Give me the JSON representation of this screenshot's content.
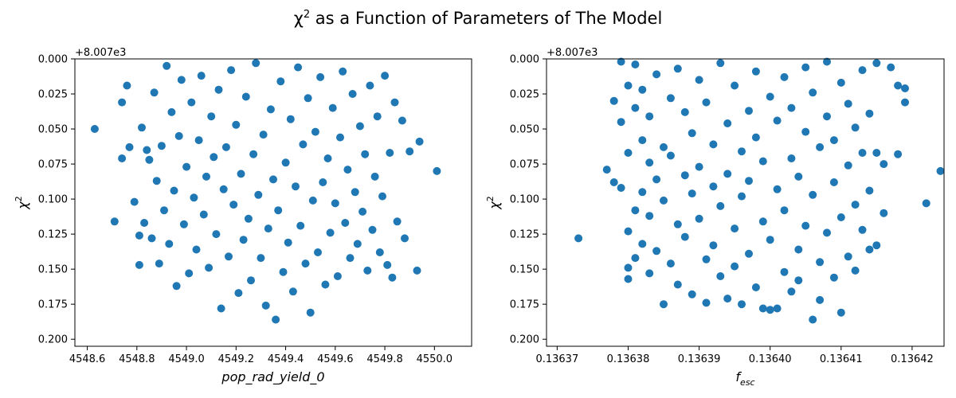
{
  "figure": {
    "title_prefix": "χ",
    "title_sup": "2",
    "title_rest": " as a Function of Parameters of The Model"
  },
  "colors": {
    "marker": "#1f77b4",
    "axes": "#000000",
    "background": "#ffffff"
  },
  "chart_data": [
    {
      "type": "scatter",
      "title": "",
      "xlabel": "pop_rad_yield_0",
      "ylabel_base": "χ",
      "ylabel_sup": "2",
      "y_offset_label": "+8.007e3",
      "xlim": [
        4548.55,
        4550.15
      ],
      "ylim": [
        0.205,
        0.0
      ],
      "y_inverted": true,
      "grid": false,
      "xticks": [
        {
          "value": 4548.6,
          "label": "4548.6"
        },
        {
          "value": 4548.8,
          "label": "4548.8"
        },
        {
          "value": 4549.0,
          "label": "4549.0"
        },
        {
          "value": 4549.2,
          "label": "4549.2"
        },
        {
          "value": 4549.4,
          "label": "4549.4"
        },
        {
          "value": 4549.6,
          "label": "4549.6"
        },
        {
          "value": 4549.8,
          "label": "4549.8"
        },
        {
          "value": 4550.0,
          "label": "4550.0"
        }
      ],
      "yticks": [
        {
          "value": 0.0,
          "label": "0.000"
        },
        {
          "value": 0.025,
          "label": "0.025"
        },
        {
          "value": 0.05,
          "label": "0.050"
        },
        {
          "value": 0.075,
          "label": "0.075"
        },
        {
          "value": 0.1,
          "label": "0.100"
        },
        {
          "value": 0.125,
          "label": "0.125"
        },
        {
          "value": 0.15,
          "label": "0.150"
        },
        {
          "value": 0.175,
          "label": "0.175"
        },
        {
          "value": 0.2,
          "label": "0.200"
        }
      ],
      "points": [
        {
          "x": 4548.63,
          "y": 0.05
        },
        {
          "x": 4548.71,
          "y": 0.116
        },
        {
          "x": 4548.74,
          "y": 0.031
        },
        {
          "x": 4548.74,
          "y": 0.071
        },
        {
          "x": 4548.76,
          "y": 0.019
        },
        {
          "x": 4548.77,
          "y": 0.063
        },
        {
          "x": 4548.79,
          "y": 0.102
        },
        {
          "x": 4548.81,
          "y": 0.126
        },
        {
          "x": 4548.81,
          "y": 0.147
        },
        {
          "x": 4548.82,
          "y": 0.049
        },
        {
          "x": 4548.83,
          "y": 0.117
        },
        {
          "x": 4548.84,
          "y": 0.065
        },
        {
          "x": 4548.85,
          "y": 0.072
        },
        {
          "x": 4548.86,
          "y": 0.128
        },
        {
          "x": 4548.87,
          "y": 0.024
        },
        {
          "x": 4548.88,
          "y": 0.087
        },
        {
          "x": 4548.89,
          "y": 0.146
        },
        {
          "x": 4548.9,
          "y": 0.062
        },
        {
          "x": 4548.91,
          "y": 0.108
        },
        {
          "x": 4548.92,
          "y": 0.005
        },
        {
          "x": 4548.93,
          "y": 0.132
        },
        {
          "x": 4548.94,
          "y": 0.038
        },
        {
          "x": 4548.95,
          "y": 0.094
        },
        {
          "x": 4548.96,
          "y": 0.162
        },
        {
          "x": 4548.97,
          "y": 0.055
        },
        {
          "x": 4548.98,
          "y": 0.015
        },
        {
          "x": 4548.99,
          "y": 0.118
        },
        {
          "x": 4549.0,
          "y": 0.077
        },
        {
          "x": 4549.01,
          "y": 0.153
        },
        {
          "x": 4549.02,
          "y": 0.031
        },
        {
          "x": 4549.03,
          "y": 0.099
        },
        {
          "x": 4549.04,
          "y": 0.136
        },
        {
          "x": 4549.05,
          "y": 0.058
        },
        {
          "x": 4549.06,
          "y": 0.012
        },
        {
          "x": 4549.07,
          "y": 0.111
        },
        {
          "x": 4549.08,
          "y": 0.084
        },
        {
          "x": 4549.09,
          "y": 0.149
        },
        {
          "x": 4549.1,
          "y": 0.041
        },
        {
          "x": 4549.11,
          "y": 0.07
        },
        {
          "x": 4549.12,
          "y": 0.125
        },
        {
          "x": 4549.13,
          "y": 0.022
        },
        {
          "x": 4549.14,
          "y": 0.178
        },
        {
          "x": 4549.15,
          "y": 0.093
        },
        {
          "x": 4549.16,
          "y": 0.063
        },
        {
          "x": 4549.17,
          "y": 0.141
        },
        {
          "x": 4549.18,
          "y": 0.008
        },
        {
          "x": 4549.19,
          "y": 0.104
        },
        {
          "x": 4549.2,
          "y": 0.047
        },
        {
          "x": 4549.21,
          "y": 0.167
        },
        {
          "x": 4549.22,
          "y": 0.082
        },
        {
          "x": 4549.23,
          "y": 0.129
        },
        {
          "x": 4549.24,
          "y": 0.027
        },
        {
          "x": 4549.25,
          "y": 0.114
        },
        {
          "x": 4549.26,
          "y": 0.158
        },
        {
          "x": 4549.27,
          "y": 0.068
        },
        {
          "x": 4549.28,
          "y": 0.003
        },
        {
          "x": 4549.29,
          "y": 0.097
        },
        {
          "x": 4549.3,
          "y": 0.142
        },
        {
          "x": 4549.31,
          "y": 0.054
        },
        {
          "x": 4549.32,
          "y": 0.176
        },
        {
          "x": 4549.33,
          "y": 0.121
        },
        {
          "x": 4549.34,
          "y": 0.036
        },
        {
          "x": 4549.35,
          "y": 0.086
        },
        {
          "x": 4549.36,
          "y": 0.186
        },
        {
          "x": 4549.37,
          "y": 0.108
        },
        {
          "x": 4549.38,
          "y": 0.016
        },
        {
          "x": 4549.39,
          "y": 0.152
        },
        {
          "x": 4549.4,
          "y": 0.074
        },
        {
          "x": 4549.41,
          "y": 0.131
        },
        {
          "x": 4549.42,
          "y": 0.043
        },
        {
          "x": 4549.43,
          "y": 0.166
        },
        {
          "x": 4549.44,
          "y": 0.091
        },
        {
          "x": 4549.45,
          "y": 0.006
        },
        {
          "x": 4549.46,
          "y": 0.119
        },
        {
          "x": 4549.47,
          "y": 0.061
        },
        {
          "x": 4549.48,
          "y": 0.146
        },
        {
          "x": 4549.49,
          "y": 0.028
        },
        {
          "x": 4549.5,
          "y": 0.181
        },
        {
          "x": 4549.51,
          "y": 0.101
        },
        {
          "x": 4549.52,
          "y": 0.052
        },
        {
          "x": 4549.53,
          "y": 0.138
        },
        {
          "x": 4549.54,
          "y": 0.013
        },
        {
          "x": 4549.55,
          "y": 0.088
        },
        {
          "x": 4549.56,
          "y": 0.161
        },
        {
          "x": 4549.57,
          "y": 0.071
        },
        {
          "x": 4549.58,
          "y": 0.124
        },
        {
          "x": 4549.59,
          "y": 0.035
        },
        {
          "x": 4549.6,
          "y": 0.103
        },
        {
          "x": 4549.61,
          "y": 0.155
        },
        {
          "x": 4549.62,
          "y": 0.056
        },
        {
          "x": 4549.63,
          "y": 0.009
        },
        {
          "x": 4549.64,
          "y": 0.117
        },
        {
          "x": 4549.65,
          "y": 0.079
        },
        {
          "x": 4549.66,
          "y": 0.142
        },
        {
          "x": 4549.67,
          "y": 0.025
        },
        {
          "x": 4549.68,
          "y": 0.095
        },
        {
          "x": 4549.69,
          "y": 0.132
        },
        {
          "x": 4549.7,
          "y": 0.048
        },
        {
          "x": 4549.71,
          "y": 0.109
        },
        {
          "x": 4549.72,
          "y": 0.068
        },
        {
          "x": 4549.73,
          "y": 0.151
        },
        {
          "x": 4549.74,
          "y": 0.019
        },
        {
          "x": 4549.75,
          "y": 0.122
        },
        {
          "x": 4549.76,
          "y": 0.084
        },
        {
          "x": 4549.77,
          "y": 0.041
        },
        {
          "x": 4549.78,
          "y": 0.138
        },
        {
          "x": 4549.79,
          "y": 0.098
        },
        {
          "x": 4549.8,
          "y": 0.012
        },
        {
          "x": 4549.81,
          "y": 0.147
        },
        {
          "x": 4549.82,
          "y": 0.067
        },
        {
          "x": 4549.83,
          "y": 0.156
        },
        {
          "x": 4549.84,
          "y": 0.031
        },
        {
          "x": 4549.85,
          "y": 0.116
        },
        {
          "x": 4549.87,
          "y": 0.044
        },
        {
          "x": 4549.88,
          "y": 0.128
        },
        {
          "x": 4549.9,
          "y": 0.066
        },
        {
          "x": 4549.93,
          "y": 0.151
        },
        {
          "x": 4549.94,
          "y": 0.059
        },
        {
          "x": 4550.01,
          "y": 0.08
        }
      ]
    },
    {
      "type": "scatter",
      "title": "",
      "xlabel_base": "f",
      "xlabel_sub": "esc",
      "ylabel_base": "χ",
      "ylabel_sup": "2",
      "y_offset_label": "+8.007e3",
      "xlim": [
        0.1363685,
        0.1364245
      ],
      "ylim": [
        0.205,
        0.0
      ],
      "y_inverted": true,
      "grid": false,
      "xticks": [
        {
          "value": 0.13637,
          "label": "0.13637"
        },
        {
          "value": 0.13638,
          "label": "0.13638"
        },
        {
          "value": 0.13639,
          "label": "0.13639"
        },
        {
          "value": 0.1364,
          "label": "0.13640"
        },
        {
          "value": 0.13641,
          "label": "0.13641"
        },
        {
          "value": 0.13642,
          "label": "0.13642"
        }
      ],
      "yticks": [
        {
          "value": 0.0,
          "label": "0.000"
        },
        {
          "value": 0.025,
          "label": "0.025"
        },
        {
          "value": 0.05,
          "label": "0.050"
        },
        {
          "value": 0.075,
          "label": "0.075"
        },
        {
          "value": 0.1,
          "label": "0.100"
        },
        {
          "value": 0.125,
          "label": "0.125"
        },
        {
          "value": 0.15,
          "label": "0.150"
        },
        {
          "value": 0.175,
          "label": "0.175"
        },
        {
          "value": 0.2,
          "label": "0.200"
        }
      ],
      "points": [
        {
          "x": 0.136373,
          "y": 0.128
        },
        {
          "x": 0.136377,
          "y": 0.079
        },
        {
          "x": 0.136378,
          "y": 0.088
        },
        {
          "x": 0.136378,
          "y": 0.03
        },
        {
          "x": 0.136379,
          "y": 0.092
        },
        {
          "x": 0.136379,
          "y": 0.002
        },
        {
          "x": 0.136379,
          "y": 0.045
        },
        {
          "x": 0.13638,
          "y": 0.019
        },
        {
          "x": 0.13638,
          "y": 0.123
        },
        {
          "x": 0.13638,
          "y": 0.149
        },
        {
          "x": 0.13638,
          "y": 0.067
        },
        {
          "x": 0.13638,
          "y": 0.157
        },
        {
          "x": 0.136381,
          "y": 0.035
        },
        {
          "x": 0.136381,
          "y": 0.108
        },
        {
          "x": 0.136381,
          "y": 0.004
        },
        {
          "x": 0.136381,
          "y": 0.142
        },
        {
          "x": 0.136382,
          "y": 0.058
        },
        {
          "x": 0.136382,
          "y": 0.095
        },
        {
          "x": 0.136382,
          "y": 0.132
        },
        {
          "x": 0.136382,
          "y": 0.022
        },
        {
          "x": 0.136383,
          "y": 0.074
        },
        {
          "x": 0.136383,
          "y": 0.153
        },
        {
          "x": 0.136383,
          "y": 0.112
        },
        {
          "x": 0.136383,
          "y": 0.041
        },
        {
          "x": 0.136384,
          "y": 0.086
        },
        {
          "x": 0.136384,
          "y": 0.011
        },
        {
          "x": 0.136384,
          "y": 0.137
        },
        {
          "x": 0.136385,
          "y": 0.063
        },
        {
          "x": 0.136385,
          "y": 0.175
        },
        {
          "x": 0.136385,
          "y": 0.101
        },
        {
          "x": 0.136386,
          "y": 0.028
        },
        {
          "x": 0.136386,
          "y": 0.146
        },
        {
          "x": 0.136386,
          "y": 0.069
        },
        {
          "x": 0.136387,
          "y": 0.118
        },
        {
          "x": 0.136387,
          "y": 0.007
        },
        {
          "x": 0.136387,
          "y": 0.161
        },
        {
          "x": 0.136388,
          "y": 0.083
        },
        {
          "x": 0.136388,
          "y": 0.038
        },
        {
          "x": 0.136388,
          "y": 0.127
        },
        {
          "x": 0.136389,
          "y": 0.096
        },
        {
          "x": 0.136389,
          "y": 0.053
        },
        {
          "x": 0.136389,
          "y": 0.168
        },
        {
          "x": 0.13639,
          "y": 0.015
        },
        {
          "x": 0.13639,
          "y": 0.114
        },
        {
          "x": 0.13639,
          "y": 0.077
        },
        {
          "x": 0.136391,
          "y": 0.143
        },
        {
          "x": 0.136391,
          "y": 0.031
        },
        {
          "x": 0.136391,
          "y": 0.174
        },
        {
          "x": 0.136392,
          "y": 0.091
        },
        {
          "x": 0.136392,
          "y": 0.061
        },
        {
          "x": 0.136392,
          "y": 0.133
        },
        {
          "x": 0.136393,
          "y": 0.003
        },
        {
          "x": 0.136393,
          "y": 0.105
        },
        {
          "x": 0.136393,
          "y": 0.155
        },
        {
          "x": 0.136394,
          "y": 0.046
        },
        {
          "x": 0.136394,
          "y": 0.171
        },
        {
          "x": 0.136394,
          "y": 0.082
        },
        {
          "x": 0.136395,
          "y": 0.121
        },
        {
          "x": 0.136395,
          "y": 0.019
        },
        {
          "x": 0.136395,
          "y": 0.148
        },
        {
          "x": 0.136396,
          "y": 0.066
        },
        {
          "x": 0.136396,
          "y": 0.175
        },
        {
          "x": 0.136396,
          "y": 0.098
        },
        {
          "x": 0.136397,
          "y": 0.037
        },
        {
          "x": 0.136397,
          "y": 0.139
        },
        {
          "x": 0.136397,
          "y": 0.087
        },
        {
          "x": 0.136398,
          "y": 0.009
        },
        {
          "x": 0.136398,
          "y": 0.163
        },
        {
          "x": 0.136398,
          "y": 0.056
        },
        {
          "x": 0.136399,
          "y": 0.116
        },
        {
          "x": 0.136399,
          "y": 0.178
        },
        {
          "x": 0.136399,
          "y": 0.073
        },
        {
          "x": 0.1364,
          "y": 0.027
        },
        {
          "x": 0.1364,
          "y": 0.179
        },
        {
          "x": 0.1364,
          "y": 0.129
        },
        {
          "x": 0.136401,
          "y": 0.093
        },
        {
          "x": 0.136401,
          "y": 0.044
        },
        {
          "x": 0.136401,
          "y": 0.178
        },
        {
          "x": 0.136402,
          "y": 0.152
        },
        {
          "x": 0.136402,
          "y": 0.013
        },
        {
          "x": 0.136402,
          "y": 0.108
        },
        {
          "x": 0.136403,
          "y": 0.071
        },
        {
          "x": 0.136403,
          "y": 0.166
        },
        {
          "x": 0.136403,
          "y": 0.035
        },
        {
          "x": 0.136404,
          "y": 0.136
        },
        {
          "x": 0.136404,
          "y": 0.084
        },
        {
          "x": 0.136404,
          "y": 0.158
        },
        {
          "x": 0.136405,
          "y": 0.052
        },
        {
          "x": 0.136405,
          "y": 0.119
        },
        {
          "x": 0.136405,
          "y": 0.006
        },
        {
          "x": 0.136406,
          "y": 0.186
        },
        {
          "x": 0.136406,
          "y": 0.097
        },
        {
          "x": 0.136406,
          "y": 0.024
        },
        {
          "x": 0.136407,
          "y": 0.145
        },
        {
          "x": 0.136407,
          "y": 0.063
        },
        {
          "x": 0.136407,
          "y": 0.172
        },
        {
          "x": 0.136408,
          "y": 0.041
        },
        {
          "x": 0.136408,
          "y": 0.124
        },
        {
          "x": 0.136408,
          "y": 0.002
        },
        {
          "x": 0.136409,
          "y": 0.088
        },
        {
          "x": 0.136409,
          "y": 0.156
        },
        {
          "x": 0.136409,
          "y": 0.058
        },
        {
          "x": 0.13641,
          "y": 0.181
        },
        {
          "x": 0.13641,
          "y": 0.017
        },
        {
          "x": 0.13641,
          "y": 0.113
        },
        {
          "x": 0.136411,
          "y": 0.076
        },
        {
          "x": 0.136411,
          "y": 0.141
        },
        {
          "x": 0.136411,
          "y": 0.032
        },
        {
          "x": 0.136412,
          "y": 0.104
        },
        {
          "x": 0.136412,
          "y": 0.151
        },
        {
          "x": 0.136412,
          "y": 0.049
        },
        {
          "x": 0.136413,
          "y": 0.122
        },
        {
          "x": 0.136413,
          "y": 0.067
        },
        {
          "x": 0.136413,
          "y": 0.008
        },
        {
          "x": 0.136414,
          "y": 0.094
        },
        {
          "x": 0.136414,
          "y": 0.136
        },
        {
          "x": 0.136414,
          "y": 0.039
        },
        {
          "x": 0.136415,
          "y": 0.067
        },
        {
          "x": 0.136415,
          "y": 0.133
        },
        {
          "x": 0.136415,
          "y": 0.003
        },
        {
          "x": 0.136416,
          "y": 0.11
        },
        {
          "x": 0.136416,
          "y": 0.075
        },
        {
          "x": 0.136417,
          "y": 0.006
        },
        {
          "x": 0.136418,
          "y": 0.019
        },
        {
          "x": 0.136418,
          "y": 0.068
        },
        {
          "x": 0.136419,
          "y": 0.021
        },
        {
          "x": 0.136419,
          "y": 0.031
        },
        {
          "x": 0.136422,
          "y": 0.103
        },
        {
          "x": 0.136424,
          "y": 0.08
        }
      ]
    }
  ]
}
